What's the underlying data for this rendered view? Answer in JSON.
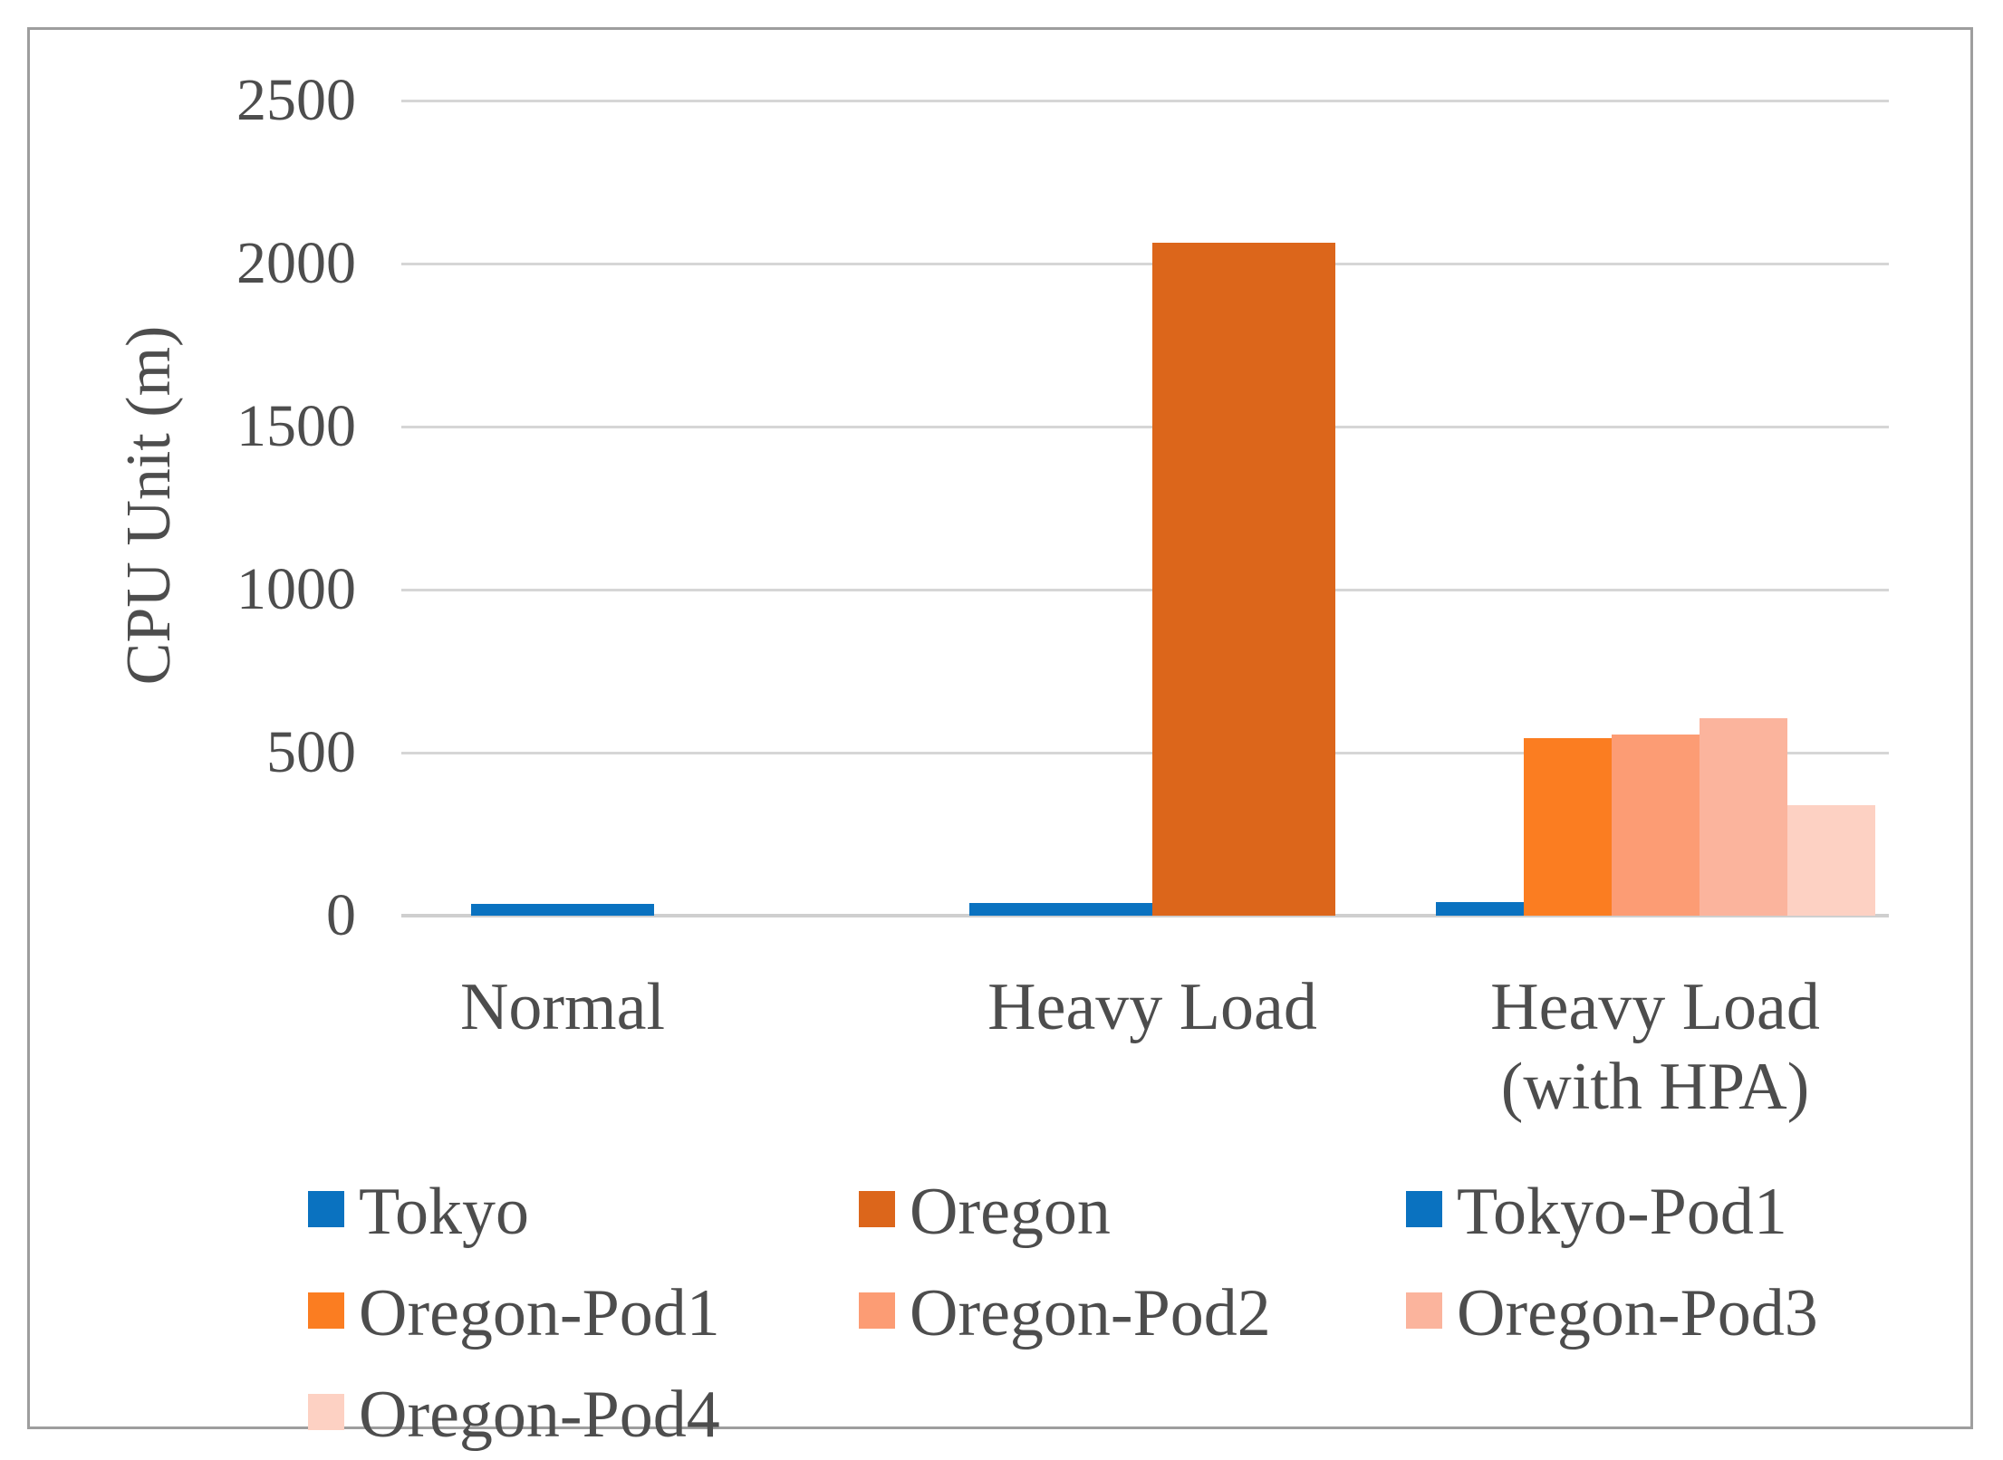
{
  "chart_data": {
    "type": "bar",
    "title": "",
    "xlabel": "",
    "ylabel": "CPU Unit (m)",
    "ylim": [
      0,
      2500
    ],
    "yticks": [
      0,
      500,
      1000,
      1500,
      2000,
      2500
    ],
    "grid": true,
    "legend_position": "bottom",
    "categories": [
      "Normal",
      "Heavy Load",
      "Heavy Load (with HPA)"
    ],
    "category_label_lines": [
      [
        "Normal"
      ],
      [
        "Heavy Load"
      ],
      [
        "Heavy Load",
        "(with HPA)"
      ]
    ],
    "groups": [
      {
        "category": "Normal",
        "bars": [
          {
            "series": "Tokyo",
            "value": 35
          }
        ]
      },
      {
        "category": "Heavy Load",
        "bars": [
          {
            "series": "Tokyo",
            "value": 40
          },
          {
            "series": "Oregon",
            "value": 2065
          }
        ]
      },
      {
        "category": "Heavy Load (with HPA)",
        "bars": [
          {
            "series": "Tokyo-Pod1",
            "value": 42
          },
          {
            "series": "Oregon-Pod1",
            "value": 545
          },
          {
            "series": "Oregon-Pod2",
            "value": 555
          },
          {
            "series": "Oregon-Pod3",
            "value": 605
          },
          {
            "series": "Oregon-Pod4",
            "value": 340
          }
        ]
      }
    ],
    "series": [
      {
        "name": "Tokyo",
        "color": "#0a72c0"
      },
      {
        "name": "Oregon",
        "color": "#dc661b"
      },
      {
        "name": "Tokyo-Pod1",
        "color": "#0a72c0"
      },
      {
        "name": "Oregon-Pod1",
        "color": "#fb7d21"
      },
      {
        "name": "Oregon-Pod2",
        "color": "#fc9c74"
      },
      {
        "name": "Oregon-Pod3",
        "color": "#fbb49d"
      },
      {
        "name": "Oregon-Pod4",
        "color": "#fdd1c3"
      }
    ],
    "legend_rows": [
      [
        "Tokyo",
        "Oregon",
        "Tokyo-Pod1"
      ],
      [
        "Oregon-Pod1",
        "Oregon-Pod2",
        "Oregon-Pod3"
      ],
      [
        "Oregon-Pod4"
      ]
    ]
  },
  "colors": {
    "axis_text": "#4d4d4d",
    "gridline": "#d6d6d6",
    "figure_border": "#9e9e9e",
    "background": "#ffffff"
  }
}
